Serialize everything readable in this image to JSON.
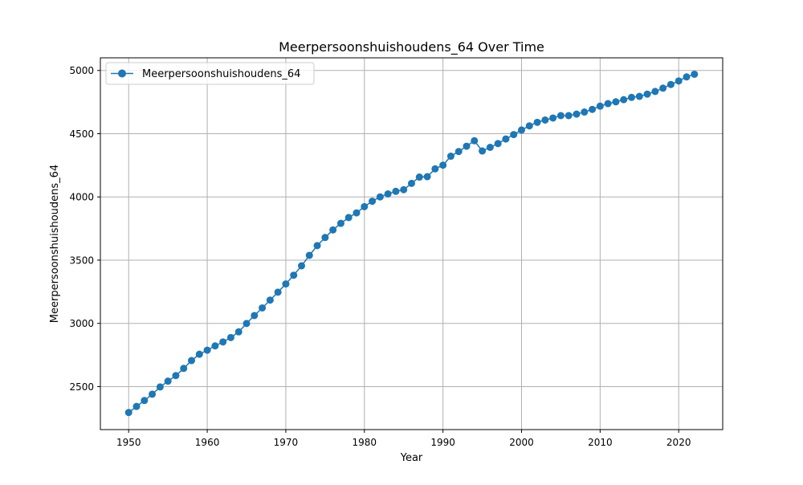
{
  "chart_data": {
    "type": "line",
    "title": "Meerpersoonshuishoudens_64 Over Time",
    "xlabel": "Year",
    "ylabel": "Meerpersoonshuishoudens_64",
    "xlim": [
      1946.4,
      2025.6
    ],
    "ylim": [
      2160,
      5100
    ],
    "xticks": [
      1950,
      1960,
      1970,
      1980,
      1990,
      2000,
      2010,
      2020
    ],
    "yticks": [
      2500,
      3000,
      3500,
      4000,
      4500,
      5000
    ],
    "grid": true,
    "legend_position": "top-left",
    "marker": "circle",
    "x": [
      1950,
      1951,
      1952,
      1953,
      1954,
      1955,
      1956,
      1957,
      1958,
      1959,
      1960,
      1961,
      1962,
      1963,
      1964,
      1965,
      1966,
      1967,
      1968,
      1969,
      1970,
      1971,
      1972,
      1973,
      1974,
      1975,
      1976,
      1977,
      1978,
      1979,
      1980,
      1981,
      1982,
      1983,
      1984,
      1985,
      1986,
      1987,
      1988,
      1989,
      1990,
      1991,
      1992,
      1993,
      1994,
      1995,
      1996,
      1997,
      1998,
      1999,
      2000,
      2001,
      2002,
      2003,
      2004,
      2005,
      2006,
      2007,
      2008,
      2009,
      2010,
      2011,
      2012,
      2013,
      2014,
      2015,
      2016,
      2017,
      2018,
      2019,
      2020,
      2021,
      2022
    ],
    "series": [
      {
        "name": "Meerpersoonshuishoudens_64",
        "color": "#1f77b4",
        "values": [
          2295,
          2343,
          2390,
          2440,
          2497,
          2543,
          2587,
          2644,
          2706,
          2756,
          2788,
          2822,
          2853,
          2888,
          2933,
          2999,
          3062,
          3122,
          3184,
          3247,
          3312,
          3381,
          3455,
          3538,
          3615,
          3679,
          3739,
          3791,
          3837,
          3874,
          3923,
          3966,
          4000,
          4024,
          4044,
          4057,
          4107,
          4157,
          4160,
          4222,
          4251,
          4322,
          4359,
          4401,
          4444,
          4363,
          4392,
          4422,
          4458,
          4493,
          4529,
          4562,
          4590,
          4608,
          4624,
          4643,
          4643,
          4655,
          4671,
          4692,
          4718,
          4738,
          4752,
          4769,
          4787,
          4795,
          4813,
          4834,
          4860,
          4889,
          4917,
          4949,
          4970
        ]
      }
    ]
  }
}
